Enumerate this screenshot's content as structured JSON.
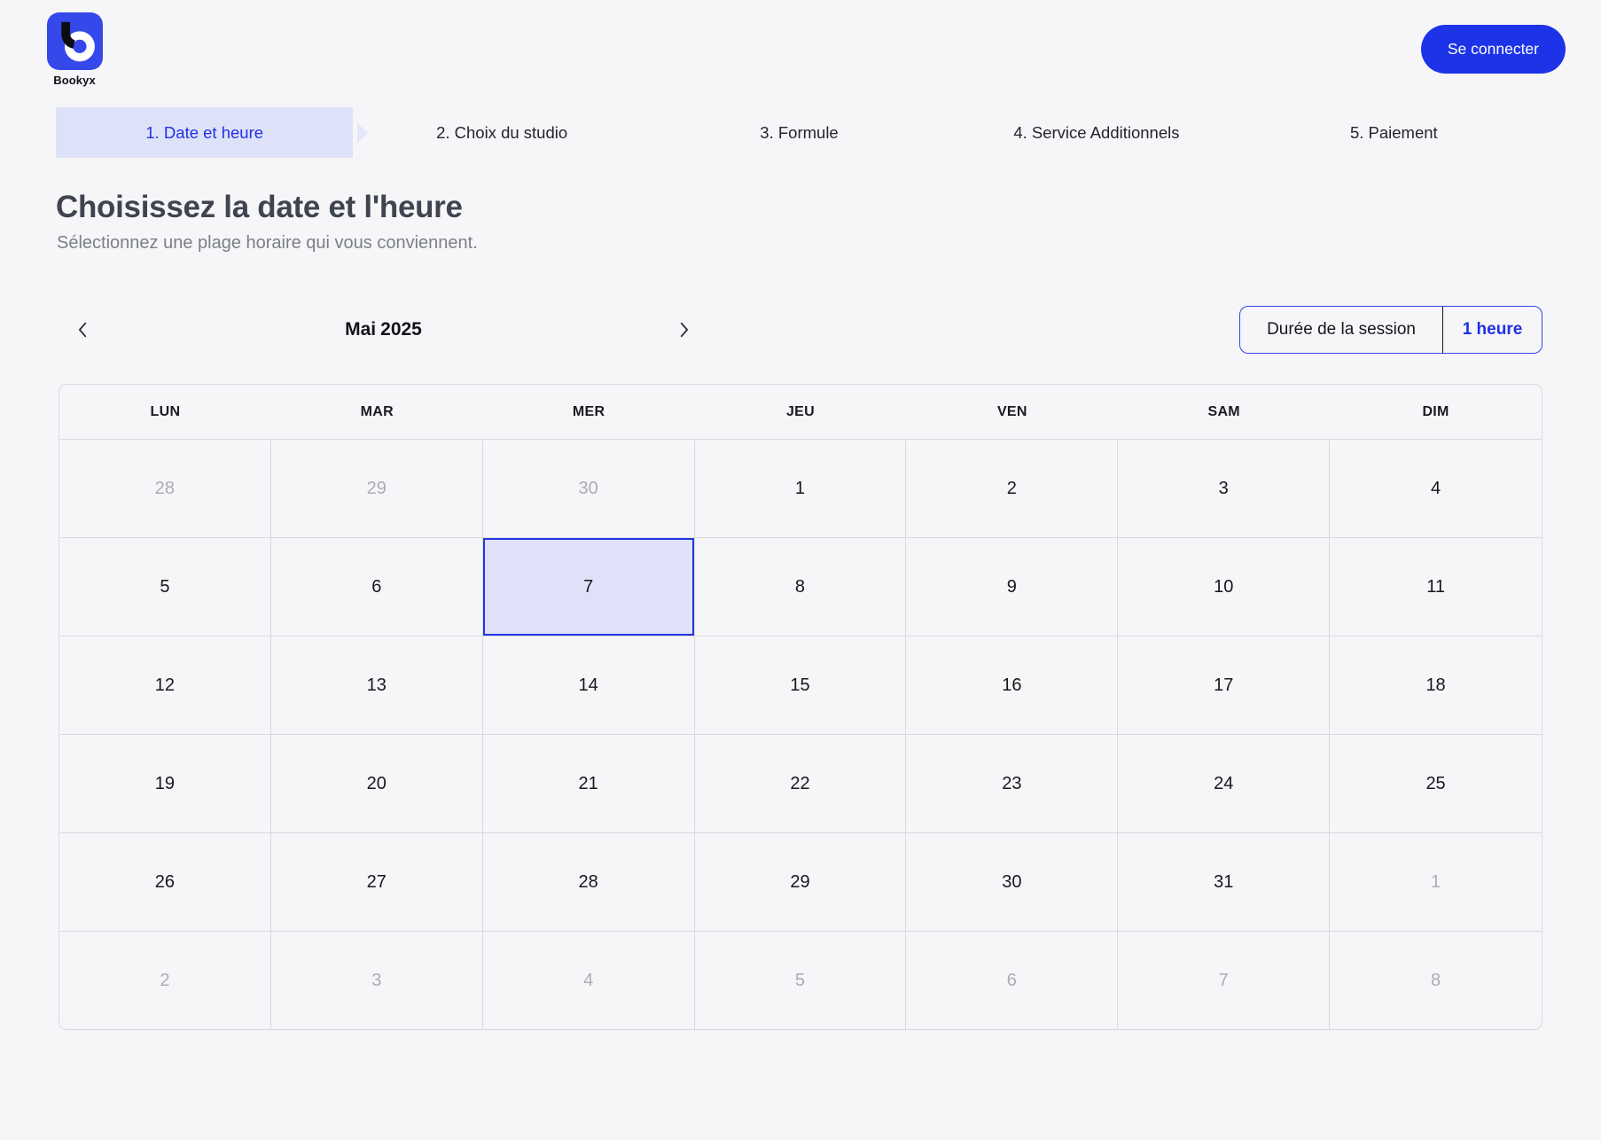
{
  "brand": {
    "name": "Bookyx"
  },
  "header": {
    "login_label": "Se connecter"
  },
  "steps": [
    {
      "label": "1. Date et heure",
      "active": true
    },
    {
      "label": "2. Choix du studio",
      "active": false
    },
    {
      "label": "3. Formule",
      "active": false
    },
    {
      "label": "4. Service Additionnels",
      "active": false
    },
    {
      "label": "5. Paiement",
      "active": false
    }
  ],
  "content": {
    "title": "Choisissez la date et l'heure",
    "subtitle": "Sélectionnez une plage horaire qui vous conviennent."
  },
  "calendar": {
    "month": "Mai",
    "year": "2025",
    "duration": {
      "label": "Durée de la session",
      "value": "1 heure"
    },
    "weekdays": [
      "LUN",
      "MAR",
      "MER",
      "JEU",
      "VEN",
      "SAM",
      "DIM"
    ],
    "weeks": [
      [
        {
          "day": "28",
          "muted": true
        },
        {
          "day": "29",
          "muted": true
        },
        {
          "day": "30",
          "muted": true
        },
        {
          "day": "1"
        },
        {
          "day": "2"
        },
        {
          "day": "3"
        },
        {
          "day": "4"
        }
      ],
      [
        {
          "day": "5"
        },
        {
          "day": "6"
        },
        {
          "day": "7",
          "selected": true
        },
        {
          "day": "8"
        },
        {
          "day": "9"
        },
        {
          "day": "10"
        },
        {
          "day": "11"
        }
      ],
      [
        {
          "day": "12"
        },
        {
          "day": "13"
        },
        {
          "day": "14"
        },
        {
          "day": "15"
        },
        {
          "day": "16"
        },
        {
          "day": "17"
        },
        {
          "day": "18"
        }
      ],
      [
        {
          "day": "19"
        },
        {
          "day": "20"
        },
        {
          "day": "21"
        },
        {
          "day": "22"
        },
        {
          "day": "23"
        },
        {
          "day": "24"
        },
        {
          "day": "25"
        }
      ],
      [
        {
          "day": "26"
        },
        {
          "day": "27"
        },
        {
          "day": "28"
        },
        {
          "day": "29"
        },
        {
          "day": "30"
        },
        {
          "day": "31"
        },
        {
          "day": "1",
          "muted": true
        }
      ],
      [
        {
          "day": "2",
          "muted": true
        },
        {
          "day": "3",
          "muted": true
        },
        {
          "day": "4",
          "muted": true
        },
        {
          "day": "5",
          "muted": true
        },
        {
          "day": "6",
          "muted": true
        },
        {
          "day": "7",
          "muted": true
        },
        {
          "day": "8",
          "muted": true
        }
      ]
    ]
  },
  "colors": {
    "accent": "#1d33e8",
    "accent_text": "#2030e4",
    "accent_soft": "#dee2f8",
    "accent_arrow": "#e4e7fb",
    "selected_border": "#2336e2",
    "grid_border": "#d8dade",
    "page_background": "#f6f6f8",
    "text_dark": "#17181c",
    "text_muted_day": "#a9adb4",
    "heading": "#3f4450",
    "subtitle": "#7b7f88",
    "logo_blue": "#3548ea"
  }
}
